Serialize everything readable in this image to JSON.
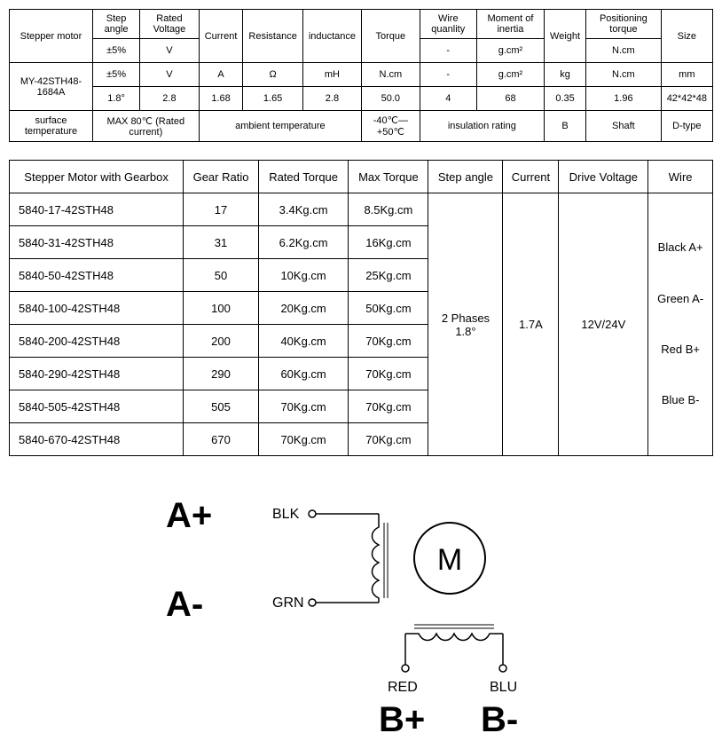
{
  "table1": {
    "headers": [
      "Stepper motor",
      "Step angle",
      "Rated Voltage",
      "Current",
      "Resistance",
      "inductance",
      "Torque",
      "Wire quanlity",
      "Moment of inertia",
      "Weight",
      "Positioning torque",
      "Size"
    ],
    "units": [
      "±5%",
      "V",
      "A",
      "Ω",
      "mH",
      "N.cm",
      "-",
      "g.cm²",
      "kg",
      "N.cm",
      "mm"
    ],
    "model": "MY-42STH48-1684A",
    "values": [
      "1.8°",
      "2.8",
      "1.68",
      "1.65",
      "2.8",
      "50.0",
      "4",
      "68",
      "0.35",
      "1.96",
      "42*42*48"
    ],
    "footer": {
      "c1": "surface temperature",
      "c2": "MAX 80℃ (Rated current)",
      "c3": "ambient temperature",
      "c4": "-40℃—+50℃",
      "c5": "insulation rating",
      "c6": "B",
      "c7": "Shaft",
      "c8": "D-type"
    }
  },
  "table2": {
    "headers": [
      "Stepper Motor with Gearbox",
      "Gear Ratio",
      "Rated Torque",
      "Max Torque",
      "Step angle",
      "Current",
      "Drive Voltage",
      "Wire"
    ],
    "rows": [
      [
        "5840-17-42STH48",
        "17",
        "3.4Kg.cm",
        "8.5Kg.cm"
      ],
      [
        "5840-31-42STH48",
        "31",
        "6.2Kg.cm",
        "16Kg.cm"
      ],
      [
        "5840-50-42STH48",
        "50",
        "10Kg.cm",
        "25Kg.cm"
      ],
      [
        "5840-100-42STH48",
        "100",
        "20Kg.cm",
        "50Kg.cm"
      ],
      [
        "5840-200-42STH48",
        "200",
        "40Kg.cm",
        "70Kg.cm"
      ],
      [
        "5840-290-42STH48",
        "290",
        "60Kg.cm",
        "70Kg.cm"
      ],
      [
        "5840-505-42STH48",
        "505",
        "70Kg.cm",
        "70Kg.cm"
      ],
      [
        "5840-670-42STH48",
        "670",
        "70Kg.cm",
        "70Kg.cm"
      ]
    ],
    "merged": {
      "step_angle": "2 Phases\n1.8°",
      "current": "1.7A",
      "drive_voltage": "12V/24V",
      "wire": "Black A+\nGreen A-\nRed B+\nBlue B-"
    }
  },
  "diagram": {
    "a_plus": "A+",
    "a_minus": "A-",
    "blk": "BLK",
    "grn": "GRN",
    "red": "RED",
    "blu": "BLU",
    "b_plus": "B+",
    "b_minus": "B-",
    "m": "M",
    "stroke": "#000000",
    "font_big": 36,
    "font_med": 18,
    "font_m": 32
  }
}
